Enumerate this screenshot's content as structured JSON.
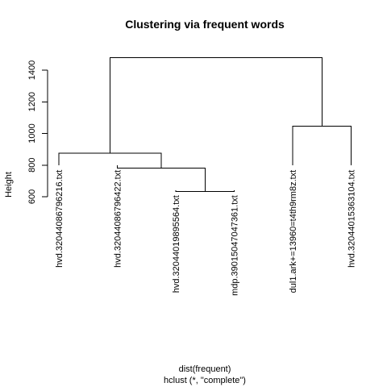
{
  "chart_data": {
    "type": "dendrogram",
    "title": "Clustering via frequent words",
    "ylabel": "Height",
    "xlabel": "dist(frequent)",
    "sublabel": "hclust (*, \"complete\")",
    "ylim": [
      600,
      1500
    ],
    "yticks": [
      600,
      800,
      1000,
      1200,
      1400
    ],
    "leaves": [
      "hvd.32044086796216.txt",
      "hvd.32044086796422.txt",
      "hvd.32044019895564.txt",
      "mdp.39015047047361.txt",
      "dul1.ark+=13960=t4th9rm8z.txt",
      "hvd.32044015363104.txt"
    ],
    "leaf_heights": [
      800,
      800,
      640,
      640,
      800,
      800
    ],
    "merges": [
      {
        "left": 2,
        "right": 3,
        "height": 633
      },
      {
        "left": 1,
        "right": "m1",
        "height": 782
      },
      {
        "left": 0,
        "right": "m2",
        "height": 874
      },
      {
        "left": 4,
        "right": 5,
        "height": 1045
      },
      {
        "left": "m3",
        "right": "m4",
        "height": 1480
      }
    ]
  }
}
